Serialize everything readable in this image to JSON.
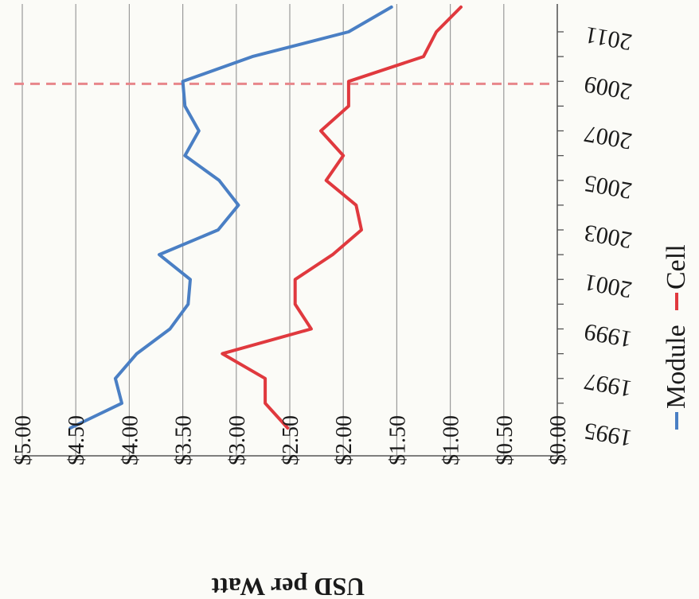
{
  "chart_data": {
    "type": "line",
    "orientation": "rotated-180",
    "ylabel": "USD per Watt",
    "ylim": [
      0,
      5
    ],
    "y_ticks": [
      "$5.00",
      "$4.50",
      "$4.00",
      "$3.50",
      "$3.00",
      "$2.50",
      "$2.00",
      "$1.50",
      "$1.00",
      "$0.50",
      "$0.00"
    ],
    "x_tick_labels": [
      "1995",
      "1997",
      "1999",
      "2001",
      "2003",
      "2005",
      "2007",
      "2009",
      "2011"
    ],
    "x": [
      1995,
      1996,
      1997,
      1998,
      1999,
      2000,
      2001,
      2002,
      2003,
      2004,
      2005,
      2006,
      2007,
      2008,
      2009,
      2010,
      2011,
      2012
    ],
    "series": [
      {
        "name": "Module",
        "color": "#4a7fc4",
        "values": [
          4.55,
          4.07,
          4.13,
          3.93,
          3.62,
          3.45,
          3.43,
          3.72,
          3.17,
          2.98,
          3.16,
          3.48,
          3.35,
          3.48,
          3.5,
          2.85,
          1.95,
          1.55
        ]
      },
      {
        "name": "Cell",
        "color": "#e0393e",
        "values": [
          2.52,
          2.73,
          2.73,
          3.13,
          2.3,
          2.45,
          2.45,
          2.1,
          1.83,
          1.88,
          2.16,
          2.0,
          2.21,
          1.95,
          1.95,
          1.25,
          1.13,
          0.9
        ]
      }
    ],
    "annotation": {
      "type": "dashed-vertical-line",
      "x": 2008.9,
      "color": "#e8868a"
    },
    "grid": true,
    "legend_position": "right"
  }
}
